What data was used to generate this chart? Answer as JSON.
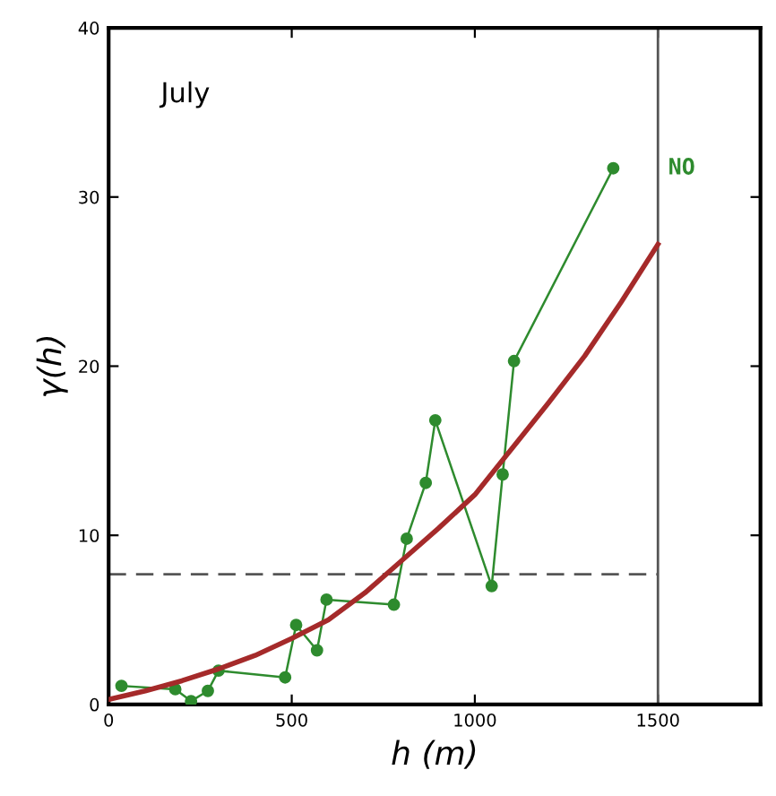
{
  "chart_data": {
    "type": "line",
    "xlabel": "h (m)",
    "ylabel": "γ(h)",
    "annotations": [
      {
        "text": "July"
      }
    ],
    "xlim": [
      0,
      1780
    ],
    "xticks": [
      0,
      500,
      1000,
      1500
    ],
    "ylim": [
      0,
      40
    ],
    "yticks": [
      0,
      10,
      20,
      30,
      40
    ],
    "grid": false,
    "legend": false,
    "series": [
      {
        "name": "NO",
        "color": "#2e8b2e",
        "marker": "circle",
        "x": [
          35,
          182,
          225,
          271,
          300,
          482,
          512,
          569,
          595,
          779,
          814,
          866,
          892,
          1046,
          1076,
          1107,
          1378
        ],
        "values": [
          1.1,
          0.9,
          0.2,
          0.8,
          2.0,
          1.6,
          4.7,
          3.2,
          6.2,
          5.9,
          9.8,
          13.1,
          16.8,
          7.0,
          13.6,
          20.3,
          31.7
        ]
      },
      {
        "color": "#a52a2a",
        "marker": "none",
        "x": [
          0,
          100,
          200,
          300,
          400,
          500,
          600,
          700,
          800,
          900,
          1000,
          1100,
          1200,
          1300,
          1400,
          1500
        ],
        "values": [
          0.3,
          0.8,
          1.4,
          2.1,
          2.9,
          3.9,
          5.0,
          6.6,
          8.5,
          10.4,
          12.4,
          15.1,
          17.8,
          20.6,
          23.8,
          27.2
        ]
      }
    ],
    "ref_lines": [
      {
        "axis": "y",
        "value": 7.7,
        "color": "#555555",
        "line_style": "dashed"
      },
      {
        "axis": "x",
        "value": 1500,
        "color": "#555555",
        "line_style": "solid"
      }
    ]
  }
}
